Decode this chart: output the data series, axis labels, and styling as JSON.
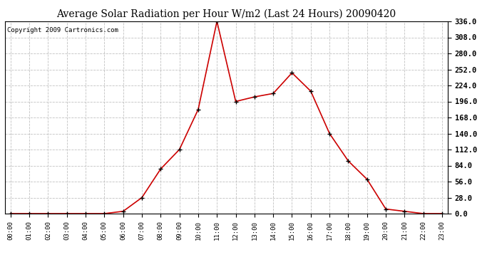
{
  "title": "Average Solar Radiation per Hour W/m2 (Last 24 Hours) 20090420",
  "copyright": "Copyright 2009 Cartronics.com",
  "x_labels": [
    "00:00",
    "01:00",
    "02:00",
    "03:00",
    "04:00",
    "05:00",
    "06:00",
    "07:00",
    "08:00",
    "09:00",
    "10:00",
    "11:00",
    "12:00",
    "13:00",
    "14:00",
    "15:00",
    "16:00",
    "17:00",
    "18:00",
    "19:00",
    "20:00",
    "21:00",
    "22:00",
    "23:00"
  ],
  "y_values": [
    0.0,
    0.0,
    0.0,
    0.0,
    0.0,
    0.0,
    4.0,
    28.0,
    78.0,
    112.0,
    182.0,
    336.0,
    196.0,
    204.0,
    210.0,
    246.0,
    214.0,
    140.0,
    92.0,
    60.0,
    8.0,
    4.0,
    0.0,
    0.0
  ],
  "y_min": 0.0,
  "y_max": 336.0,
  "y_ticks": [
    0.0,
    28.0,
    56.0,
    84.0,
    112.0,
    140.0,
    168.0,
    196.0,
    224.0,
    252.0,
    280.0,
    308.0,
    336.0
  ],
  "line_color": "#cc0000",
  "marker_color": "#000000",
  "bg_color": "#ffffff",
  "grid_color": "#bbbbbb",
  "title_fontsize": 10,
  "copyright_fontsize": 6.5,
  "tick_fontsize": 7.5,
  "xtick_fontsize": 6.5
}
